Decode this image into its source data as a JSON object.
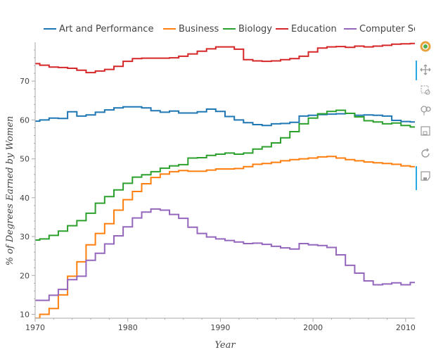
{
  "chart_data": {
    "type": "line",
    "step": true,
    "xlabel": "Year",
    "ylabel": "% of Degrees Earned by Women",
    "xlim": [
      1970,
      2011
    ],
    "ylim": [
      9,
      80
    ],
    "x_ticks": [
      1970,
      1980,
      1990,
      2000,
      2010
    ],
    "y_ticks": [
      10,
      20,
      30,
      40,
      50,
      60,
      70
    ],
    "grid": false,
    "legend_position": "top",
    "x": [
      1970,
      1971,
      1972,
      1973,
      1974,
      1975,
      1976,
      1977,
      1978,
      1979,
      1980,
      1981,
      1982,
      1983,
      1984,
      1985,
      1986,
      1987,
      1988,
      1989,
      1990,
      1991,
      1992,
      1993,
      1994,
      1995,
      1996,
      1997,
      1998,
      1999,
      2000,
      2001,
      2002,
      2003,
      2004,
      2005,
      2006,
      2007,
      2008,
      2009,
      2010,
      2011
    ],
    "series": [
      {
        "name": "Art and Performance",
        "color": "#1f77b4",
        "values": [
          59.7,
          60.0,
          60.5,
          60.4,
          62.1,
          61.0,
          61.3,
          62.0,
          62.6,
          63.1,
          63.4,
          63.4,
          63.1,
          62.4,
          62.0,
          62.3,
          61.8,
          61.8,
          62.1,
          62.8,
          62.2,
          60.9,
          60.0,
          59.3,
          58.8,
          58.6,
          59.0,
          59.1,
          59.4,
          61.0,
          61.2,
          61.4,
          61.5,
          61.6,
          61.7,
          61.2,
          61.3,
          61.2,
          61.0,
          59.9,
          59.6,
          59.5
        ]
      },
      {
        "name": "Business",
        "color": "#ff7f0e",
        "values": [
          9.0,
          10.0,
          11.5,
          15.0,
          19.8,
          23.5,
          27.9,
          30.8,
          33.3,
          36.8,
          39.5,
          41.6,
          43.6,
          45.2,
          46.1,
          46.7,
          47.0,
          46.8,
          46.8,
          47.1,
          47.4,
          47.4,
          47.5,
          48.0,
          48.6,
          48.8,
          49.1,
          49.5,
          49.8,
          50.0,
          50.2,
          50.5,
          50.6,
          50.2,
          49.8,
          49.5,
          49.2,
          49.0,
          48.8,
          48.6,
          48.2,
          48.0
        ]
      },
      {
        "name": "Biology",
        "color": "#2ca02c",
        "values": [
          29.1,
          29.4,
          30.3,
          31.4,
          32.8,
          34.1,
          36.0,
          38.6,
          40.3,
          42.0,
          43.7,
          45.3,
          45.9,
          46.7,
          47.6,
          48.2,
          48.5,
          50.2,
          50.3,
          50.9,
          51.2,
          51.5,
          51.2,
          51.5,
          52.5,
          53.1,
          54.1,
          55.4,
          57.0,
          59.0,
          60.5,
          61.6,
          62.2,
          62.5,
          61.7,
          60.8,
          59.8,
          59.5,
          59.0,
          59.2,
          58.6,
          58.2
        ]
      },
      {
        "name": "Education",
        "color": "#d62728",
        "values": [
          74.5,
          74.1,
          73.6,
          73.5,
          73.3,
          72.8,
          72.2,
          72.6,
          73.0,
          73.8,
          75.1,
          75.8,
          75.9,
          75.9,
          75.9,
          76.0,
          76.4,
          77.0,
          77.7,
          78.3,
          78.8,
          78.8,
          78.2,
          75.5,
          75.2,
          75.1,
          75.2,
          75.5,
          75.8,
          76.4,
          77.5,
          78.5,
          78.8,
          78.9,
          78.7,
          79.0,
          78.8,
          79.0,
          79.2,
          79.5,
          79.6,
          79.7
        ]
      },
      {
        "name": "Computer Science",
        "color": "#9467bd",
        "values": [
          13.6,
          13.6,
          14.9,
          16.4,
          18.9,
          19.8,
          23.9,
          25.7,
          28.1,
          30.2,
          32.5,
          34.8,
          36.3,
          37.1,
          36.8,
          35.7,
          34.7,
          32.4,
          30.8,
          29.9,
          29.4,
          29.0,
          28.6,
          28.2,
          28.3,
          28.0,
          27.5,
          27.1,
          26.8,
          28.2,
          27.9,
          27.7,
          27.2,
          25.3,
          22.6,
          20.6,
          18.6,
          17.6,
          17.8,
          18.1,
          17.6,
          18.2
        ]
      }
    ]
  },
  "toolbar": {
    "tools": [
      {
        "name": "bokeh-logo-icon"
      },
      {
        "name": "pan-icon"
      },
      {
        "name": "box-zoom-icon"
      },
      {
        "name": "wheel-zoom-icon"
      },
      {
        "name": "box-select-icon"
      },
      {
        "name": "reset-icon"
      },
      {
        "name": "save-icon"
      }
    ]
  }
}
